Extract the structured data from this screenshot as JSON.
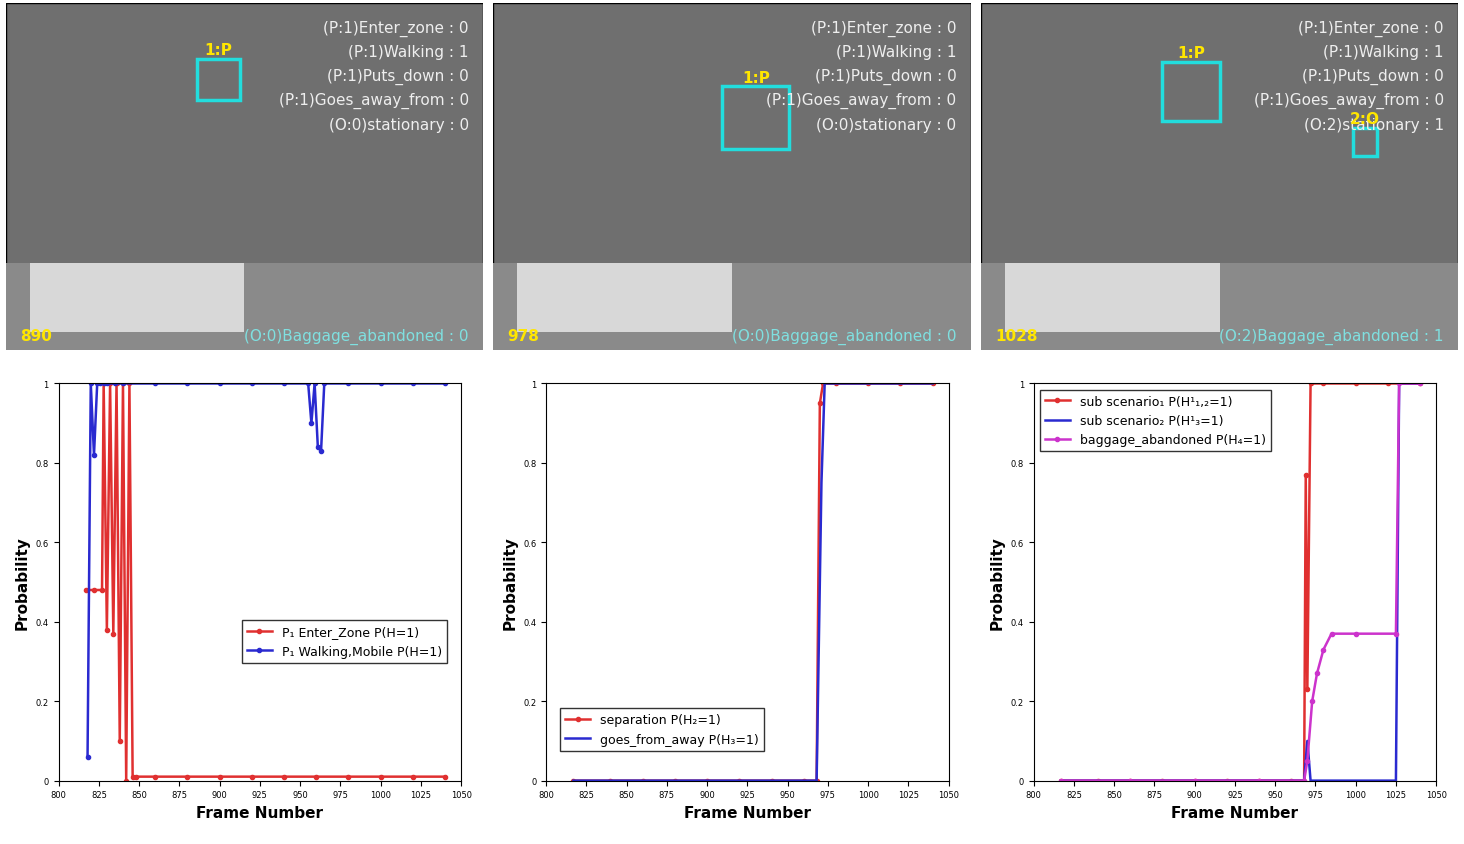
{
  "frames": [
    {
      "frame_number": "890",
      "status": [
        "(P:1)Enter_zone : 0",
        "(P:1)Walking : 1",
        "(P:1)Puts_down : 0",
        "(P:1)Goes_away_from : 0",
        "(O:0)stationary : 0"
      ],
      "objects": [
        "1:P"
      ],
      "bottom_status": "(O:0)Baggage_abandoned : 0"
    },
    {
      "frame_number": "978",
      "status": [
        "(P:1)Enter_zone : 0",
        "(P:1)Walking : 1",
        "(P:1)Puts_down : 0",
        "(P:1)Goes_away_from : 0",
        "(O:0)stationary : 0"
      ],
      "objects": [
        "1:P"
      ],
      "bottom_status": "(O:0)Baggage_abandoned : 0"
    },
    {
      "frame_number": "1028",
      "status": [
        "(P:1)Enter_zone : 0",
        "(P:1)Walking : 1",
        "(P:1)Puts_down : 0",
        "(P:1)Goes_away_from : 0",
        "(O:2)stationary : 1"
      ],
      "objects": [
        "1:P",
        "2:O"
      ],
      "bottom_status": "(O:2)Baggage_abandoned : 1"
    }
  ],
  "chart_data": [
    {
      "type": "line",
      "x_label": "Frame Number",
      "y_label": "Probability",
      "xlim": [
        800,
        1050
      ],
      "xticks": [
        800,
        825,
        850,
        875,
        900,
        925,
        950,
        975,
        1000,
        1025,
        1050
      ],
      "ylim": [
        0,
        1
      ],
      "yticks": [
        0,
        0.2,
        0.4,
        0.6,
        0.8,
        1
      ],
      "legend": "center right",
      "series": [
        {
          "name": "P₁ Enter_Zone P(H=1)",
          "color": "#e03030",
          "marker": "o",
          "line_style": "solid",
          "x": [
            817,
            822,
            827,
            828,
            830,
            832,
            834,
            836,
            838,
            840,
            842,
            844,
            846,
            848,
            860,
            880,
            900,
            920,
            940,
            960,
            980,
            1000,
            1020,
            1040
          ],
          "values": [
            0.48,
            0.48,
            0.48,
            1,
            0.38,
            1,
            0.37,
            1,
            0.1,
            1,
            0,
            1,
            0.01,
            0.01,
            0.01,
            0.01,
            0.01,
            0.01,
            0.01,
            0.01,
            0.01,
            0.01,
            0.01,
            0.01
          ]
        },
        {
          "name": "P₁ Walking,Mobile P(H=1)",
          "color": "#2a2ad0",
          "marker": "o",
          "line_style": "solid",
          "x": [
            818,
            820,
            822,
            824,
            826,
            828,
            830,
            835,
            840,
            860,
            880,
            900,
            920,
            940,
            955,
            957,
            959,
            961,
            963,
            965,
            980,
            1000,
            1020,
            1040
          ],
          "values": [
            0.06,
            1,
            0.82,
            1,
            1,
            1,
            1,
            1,
            1,
            1,
            1,
            1,
            1,
            1,
            1,
            0.9,
            1,
            0.84,
            0.83,
            1,
            1,
            1,
            1,
            1
          ]
        }
      ]
    },
    {
      "type": "line",
      "x_label": "Frame Number",
      "y_label": "Probability",
      "xlim": [
        800,
        1050
      ],
      "xticks": [
        800,
        825,
        850,
        875,
        900,
        925,
        950,
        975,
        1000,
        1025,
        1050
      ],
      "ylim": [
        0,
        1
      ],
      "yticks": [
        0,
        0.2,
        0.4,
        0.6,
        0.8,
        1
      ],
      "legend": "lower left",
      "series": [
        {
          "name": "separation P(H₂=1)",
          "color": "#e03030",
          "marker": "o",
          "line_style": "solid",
          "x": [
            817,
            840,
            860,
            880,
            900,
            920,
            940,
            960,
            968,
            970,
            972,
            980,
            1000,
            1020,
            1040
          ],
          "values": [
            0,
            0,
            0,
            0,
            0,
            0,
            0,
            0,
            0,
            0.95,
            1,
            1,
            1,
            1,
            1
          ]
        },
        {
          "name": "goes_from_away P(H₃=1)",
          "color": "#2a2ad0",
          "marker": "none",
          "line_style": "solid",
          "x": [
            817,
            840,
            860,
            880,
            900,
            920,
            940,
            960,
            968,
            971,
            973,
            980,
            1000,
            1020,
            1040
          ],
          "values": [
            0,
            0,
            0,
            0,
            0,
            0,
            0,
            0,
            0,
            0.75,
            1,
            1,
            1,
            1,
            1
          ]
        }
      ]
    },
    {
      "type": "line",
      "x_label": "Frame Number",
      "y_label": "Probability",
      "xlim": [
        800,
        1050
      ],
      "xticks": [
        800,
        825,
        850,
        875,
        900,
        925,
        950,
        975,
        1000,
        1025,
        1050
      ],
      "ylim": [
        0,
        1
      ],
      "yticks": [
        0,
        0.2,
        0.4,
        0.6,
        0.8,
        1
      ],
      "legend": "upper left",
      "series": [
        {
          "name": "sub scenario₁ P(H¹₁,₂=1)",
          "color": "#e03030",
          "marker": "o",
          "line_style": "solid",
          "x": [
            817,
            840,
            860,
            880,
            900,
            920,
            940,
            960,
            968,
            969,
            970,
            972,
            980,
            1000,
            1020,
            1040
          ],
          "values": [
            0,
            0,
            0,
            0,
            0,
            0,
            0,
            0,
            0,
            0.77,
            0.23,
            1,
            1,
            1,
            1,
            1
          ]
        },
        {
          "name": "sub scenario₂ P(H¹₃=1)",
          "color": "#2a2ad0",
          "marker": "none",
          "line_style": "solid",
          "x": [
            817,
            860,
            900,
            940,
            968,
            970,
            972,
            1000,
            1025,
            1027,
            1040
          ],
          "values": [
            0,
            0,
            0,
            0,
            0,
            0.1,
            0,
            0,
            0,
            1,
            1
          ]
        },
        {
          "name": "baggage_abandoned P(H₄=1)",
          "color": "#cc33cc",
          "marker": "o",
          "line_style": "solid",
          "x": [
            817,
            860,
            900,
            940,
            968,
            970,
            973,
            976,
            980,
            985,
            1000,
            1025,
            1027,
            1040
          ],
          "values": [
            0,
            0,
            0,
            0,
            0,
            0.05,
            0.2,
            0.27,
            0.33,
            0.37,
            0.37,
            0.37,
            1,
            1
          ]
        }
      ]
    }
  ]
}
